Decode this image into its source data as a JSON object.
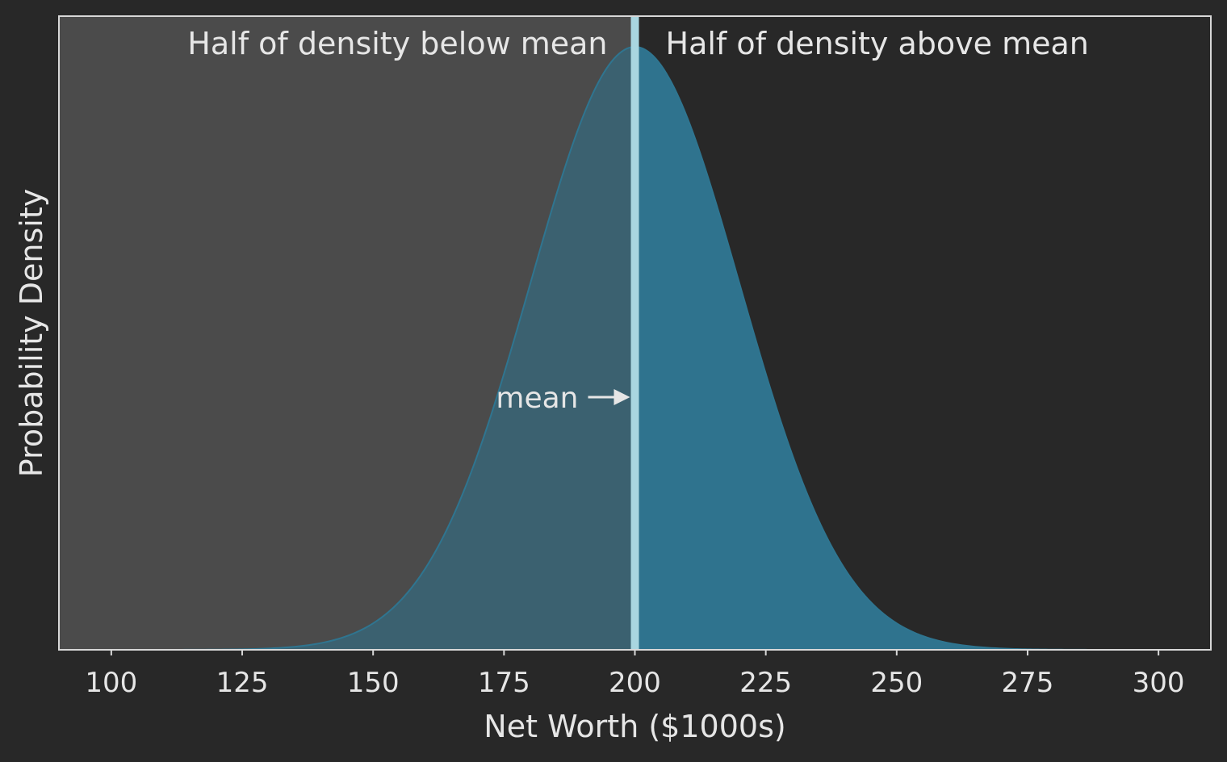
{
  "chart_data": {
    "type": "area",
    "title": "",
    "xlabel": "Net Worth ($1000s)",
    "ylabel": "Probability Density",
    "xlim": [
      90,
      310
    ],
    "xticks": [
      100,
      125,
      150,
      175,
      200,
      225,
      250,
      275,
      300
    ],
    "xtick_labels": [
      "100",
      "125",
      "150",
      "175",
      "200",
      "225",
      "250",
      "275",
      "300"
    ],
    "show_yticks": false,
    "grid": false,
    "distribution": {
      "kind": "normal",
      "mean": 200,
      "sd": 20,
      "x_range": [
        100,
        300
      ]
    },
    "annotations": {
      "left_region": "Half of density below mean",
      "right_region": "Half of density above mean",
      "mean_label": "mean"
    },
    "colors": {
      "background": "#282828",
      "left_shade": "#4b4b4b",
      "curve_fill": "#2f7590",
      "mean_line": "#a9d6e0",
      "text": "#e6e6e6",
      "frame": "#d8d8d8"
    }
  }
}
